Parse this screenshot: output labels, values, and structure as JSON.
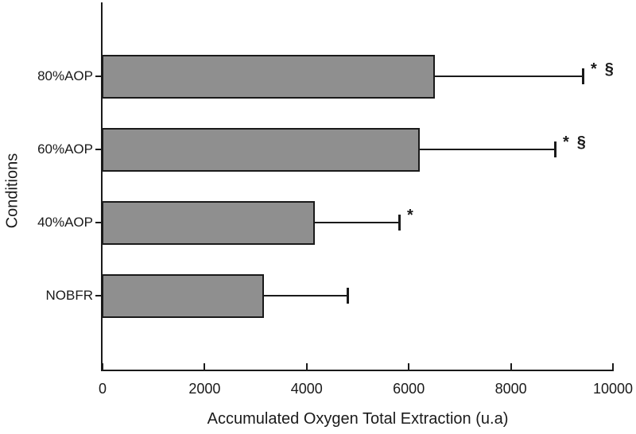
{
  "chart_data": {
    "type": "bar",
    "orientation": "horizontal",
    "title": "",
    "xlabel": "Accumulated Oxygen Total Extraction (u.a)",
    "ylabel": "Conditions",
    "categories": [
      "80%AOP",
      "60%AOP",
      "40%AOP",
      "NOBFR"
    ],
    "values": [
      6500,
      6200,
      4150,
      3150
    ],
    "error_plus": [
      2890,
      2650,
      1650,
      1630
    ],
    "annotations": [
      [
        "*",
        "§"
      ],
      [
        "*",
        "§"
      ],
      [
        "*"
      ],
      []
    ],
    "xlim": [
      0,
      10000
    ],
    "xticks": [
      0,
      2000,
      4000,
      6000,
      8000,
      10000
    ],
    "grid": false,
    "legend": false,
    "colors": {
      "bar_fill": "#8f8f8f",
      "axis": "#1a1a1a",
      "background": "#ffffff"
    }
  }
}
